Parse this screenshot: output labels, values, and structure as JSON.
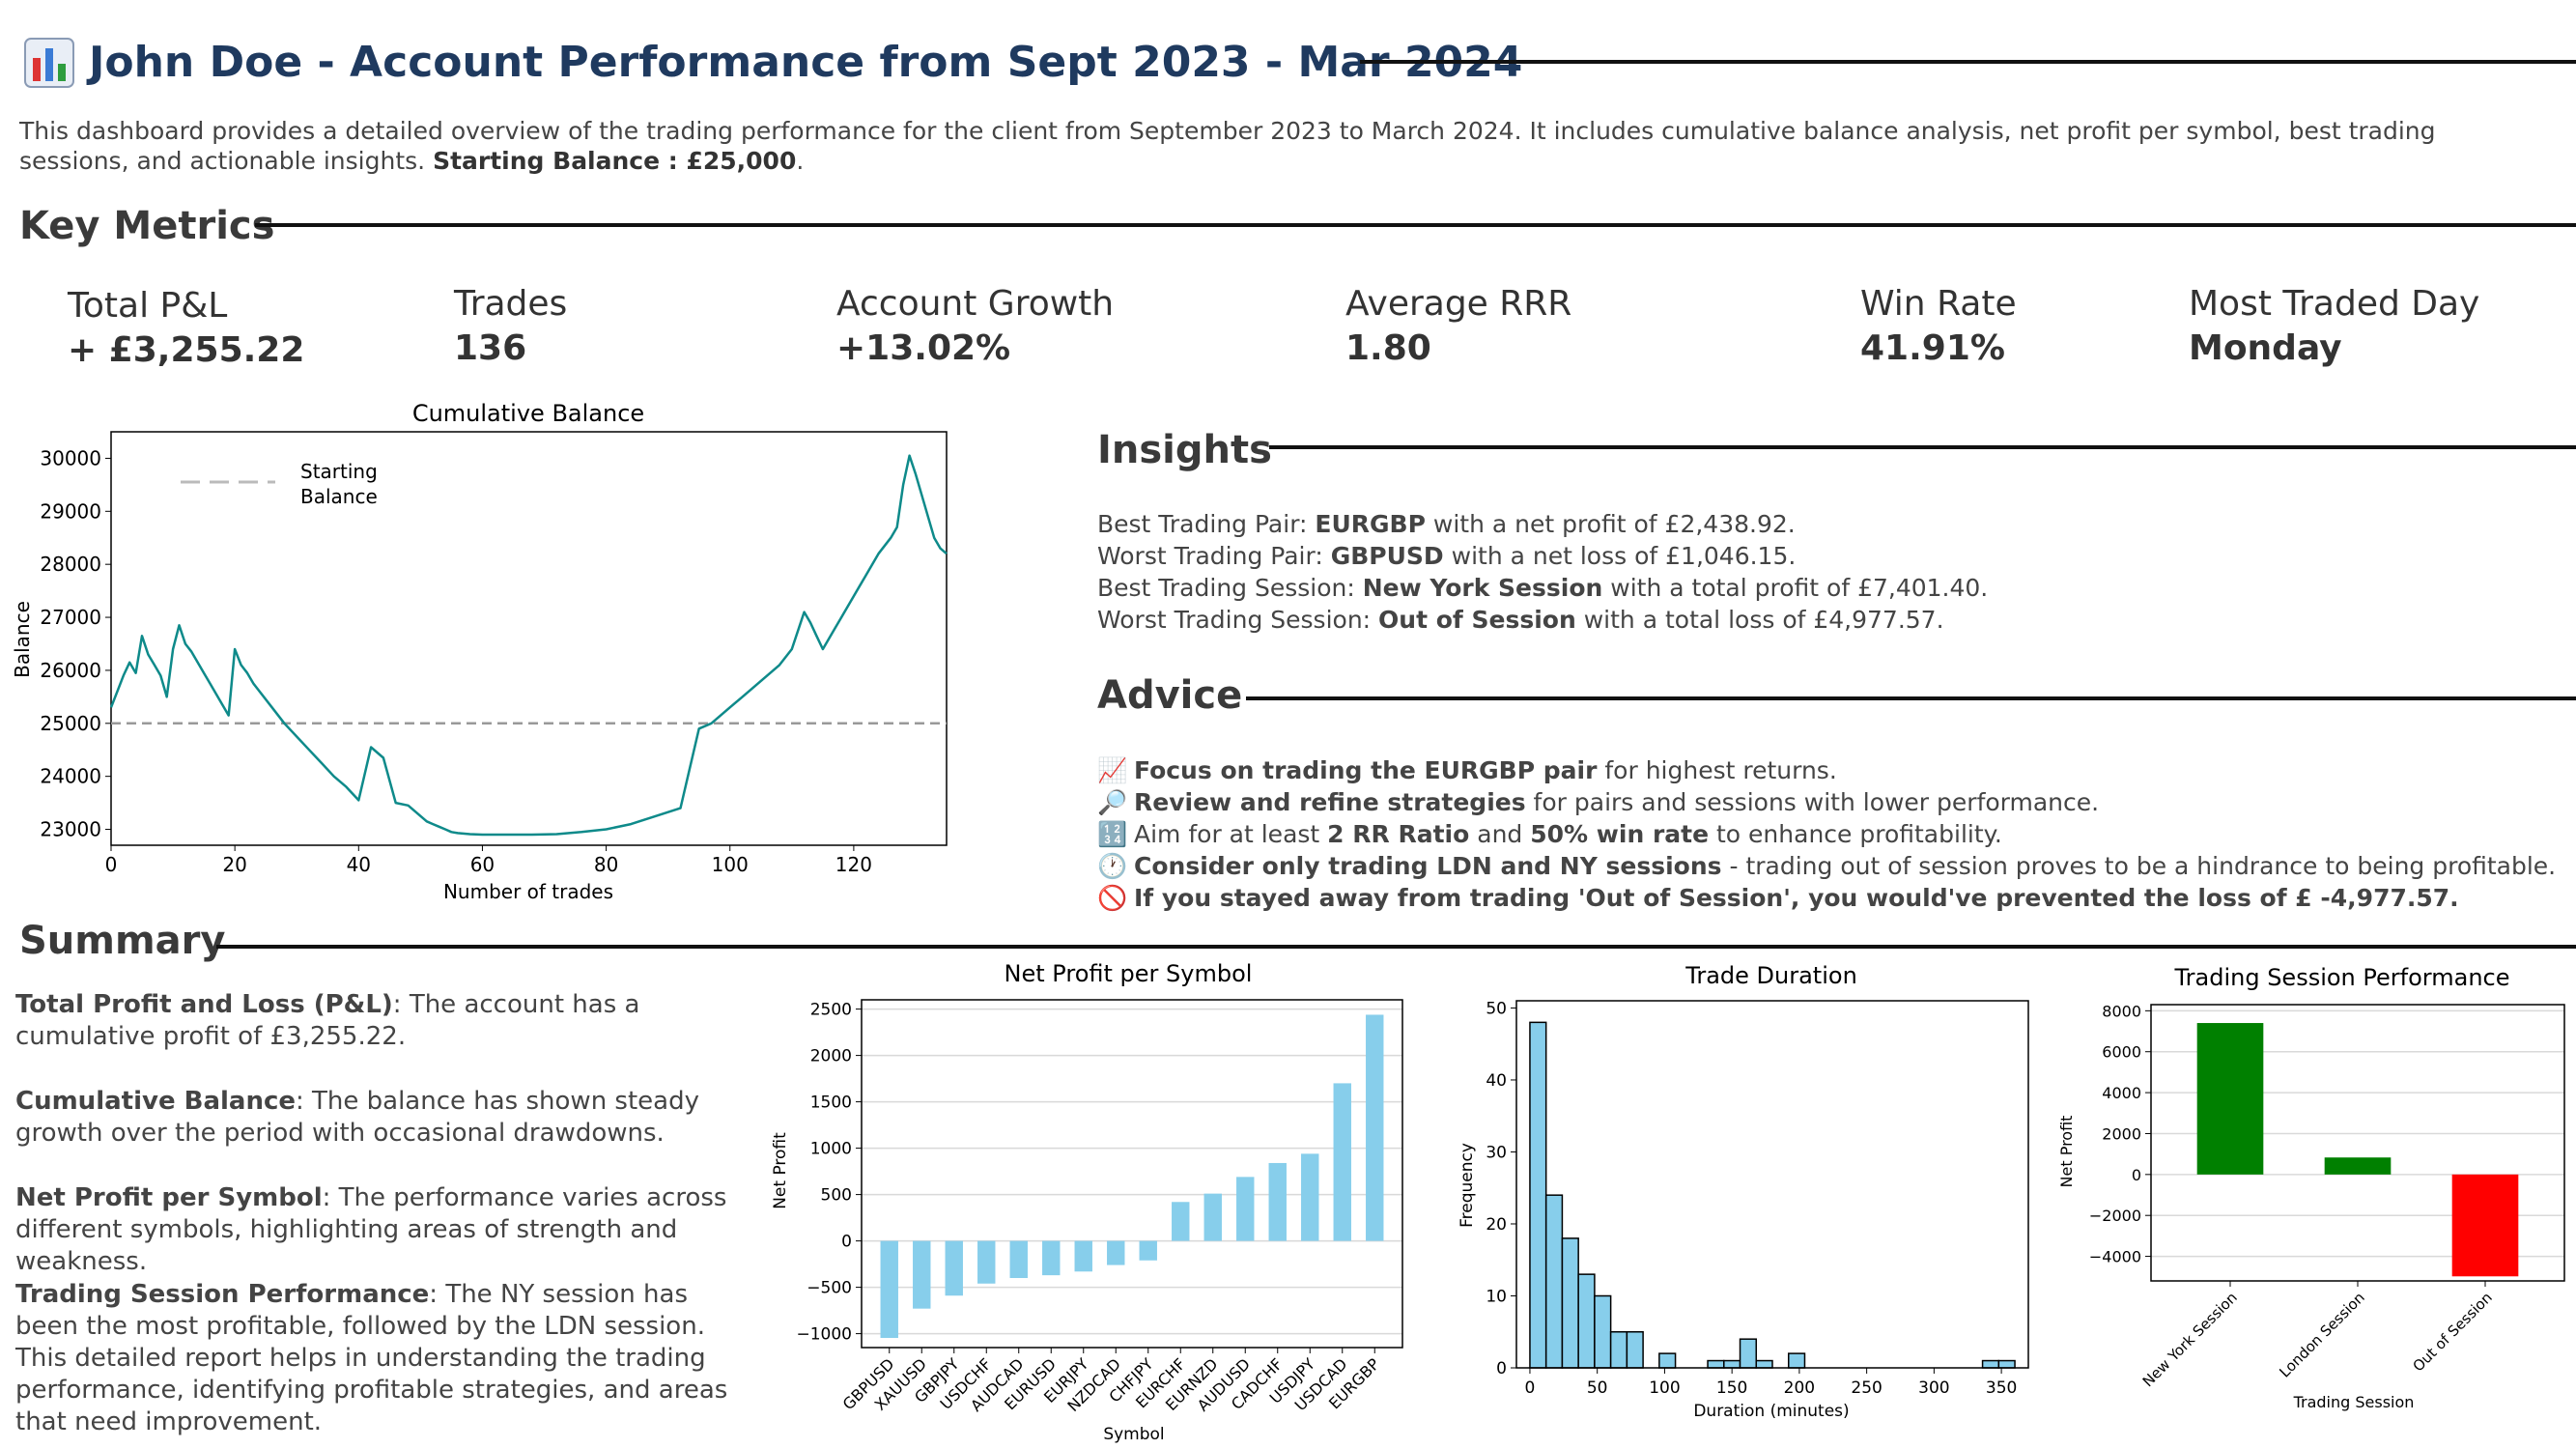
{
  "header": {
    "icon": "bar-chart-icon",
    "title": "John Doe - Account Performance from Sept 2023 - Mar 2024",
    "intro": "This dashboard provides a detailed overview of the trading performance for the client from September 2023 to March 2024. It includes cumulative balance analysis, net profit per symbol, best trading sessions, and actionable insights.",
    "starting_balance_label": "Starting Balance : £25,000",
    "title_color": "#1f3a5f"
  },
  "key_metrics": {
    "heading": "Key Metrics",
    "items": [
      {
        "label": "Total P&L",
        "value": "+ £3,255.22"
      },
      {
        "label": "Trades",
        "value": "136"
      },
      {
        "label": "Account Growth",
        "value": "+13.02%"
      },
      {
        "label": "Average RRR",
        "value": "1.80"
      },
      {
        "label": "Win Rate",
        "value": "41.91%"
      },
      {
        "label": "Most Traded Day",
        "value": "Monday"
      }
    ]
  },
  "insights": {
    "heading": "Insights",
    "lines": [
      {
        "prefix": "Best Trading Pair: ",
        "bold": "EURGBP",
        "suffix": " with a net profit of £2,438.92."
      },
      {
        "prefix": "Worst Trading Pair: ",
        "bold": "GBPUSD",
        "suffix": " with a net loss of £1,046.15."
      },
      {
        "prefix": "Best Trading Session: ",
        "bold": "New York Session",
        "suffix": " with a total profit of £7,401.40."
      },
      {
        "prefix": "Worst Trading Session: ",
        "bold": "Out of Session",
        "suffix": " with a total loss of £4,977.57."
      }
    ]
  },
  "advice": {
    "heading": "Advice",
    "lines": [
      {
        "icon": "chart-increasing-icon",
        "glyph": "📈",
        "prefix": "",
        "bold": "Focus on trading the EURGBP pair",
        "suffix": " for highest returns."
      },
      {
        "icon": "magnifier-icon",
        "glyph": "🔎",
        "prefix": "",
        "bold": "Review and refine strategies",
        "suffix": " for pairs and sessions with lower performance."
      },
      {
        "icon": "numbers-icon",
        "glyph": "🔢",
        "prefix": "Aim for at least ",
        "bold": "2 RR Ratio",
        "suffix": " and ",
        "bold2": "50% win rate",
        "suffix2": " to enhance profitability."
      },
      {
        "icon": "clock-icon",
        "glyph": "🕐",
        "prefix": "",
        "bold": "Consider only trading LDN and NY sessions",
        "suffix": " - trading out of session proves to be a hindrance to being profitable."
      },
      {
        "icon": "prohibited-icon",
        "glyph": "🚫",
        "prefix": "",
        "bold": "If you stayed away from trading 'Out of Session', you would've prevented the loss of £ -4,977.57.",
        "suffix": ""
      }
    ]
  },
  "summary": {
    "heading": "Summary",
    "paragraphs": [
      {
        "bold": "Total Profit and Loss (P&L)",
        "text": ": The account has a cumulative profit of £3,255.22."
      },
      {
        "bold": "Cumulative Balance",
        "text": ": The balance has shown steady growth over the period with occasional drawdowns."
      },
      {
        "bold": "Net Profit per Symbol",
        "text": ": The performance varies across different symbols, highlighting areas of strength and weakness."
      },
      {
        "bold": "Trading Session Performance",
        "text": ": The NY session has been the most profitable, followed by the LDN session."
      }
    ],
    "closing": "This detailed report helps in understanding the trading performance, identifying profitable strategies, and areas that need improvement."
  },
  "chart_data": [
    {
      "type": "line",
      "title": "Cumulative Balance",
      "xlabel": "Number of trades",
      "ylabel": "Balance",
      "xlim": [
        0,
        135
      ],
      "ylim": [
        22700,
        30500
      ],
      "xticks": [
        0,
        20,
        40,
        60,
        80,
        100,
        120
      ],
      "yticks": [
        23000,
        24000,
        25000,
        26000,
        27000,
        28000,
        29000,
        30000
      ],
      "legend": "top-left",
      "grid": false,
      "line_color": "#0e8a8a",
      "reference_line": {
        "name": "Starting Balance",
        "value": 25000,
        "color": "#999999"
      },
      "x": [
        0,
        1,
        2,
        3,
        4,
        5,
        6,
        7,
        8,
        9,
        10,
        11,
        12,
        13,
        14,
        15,
        16,
        17,
        18,
        19,
        20,
        21,
        22,
        23,
        24,
        26,
        28,
        30,
        32,
        34,
        36,
        38,
        40,
        42,
        44,
        46,
        48,
        49,
        50,
        51,
        52,
        53,
        54,
        55,
        56,
        58,
        60,
        64,
        68,
        72,
        76,
        80,
        84,
        88,
        92,
        95,
        97,
        98,
        99,
        100,
        102,
        104,
        106,
        108,
        110,
        112,
        113,
        114,
        115,
        116,
        117,
        118,
        120,
        122,
        124,
        126,
        127,
        128,
        129,
        130,
        131,
        132,
        133,
        134,
        135
      ],
      "y": [
        25300,
        25600,
        25900,
        26150,
        25950,
        26650,
        26300,
        26100,
        25900,
        25500,
        26400,
        26850,
        26500,
        26350,
        26150,
        25950,
        25750,
        25550,
        25350,
        25150,
        26400,
        26100,
        25950,
        25750,
        25600,
        25300,
        25000,
        24750,
        24500,
        24250,
        24000,
        23800,
        23550,
        24550,
        24350,
        23500,
        23450,
        23350,
        23250,
        23150,
        23100,
        23050,
        23000,
        22950,
        22930,
        22910,
        22900,
        22900,
        22900,
        22910,
        22950,
        23000,
        23100,
        23250,
        23400,
        24900,
        25000,
        25100,
        25200,
        25300,
        25500,
        25700,
        25900,
        26100,
        26400,
        27100,
        26900,
        26650,
        26400,
        26600,
        26800,
        27000,
        27400,
        27800,
        28200,
        28500,
        28700,
        29500,
        30050,
        29700,
        29300,
        28900,
        28500,
        28300,
        28200
      ]
    },
    {
      "type": "bar",
      "title": "Net Profit per Symbol",
      "xlabel": "Symbol",
      "ylabel": "Net Profit",
      "ylim": [
        -1150,
        2600
      ],
      "yticks": [
        -1000,
        -500,
        0,
        500,
        1000,
        1500,
        2000,
        2500
      ],
      "grid": true,
      "bar_color": "#87ceeb",
      "categories": [
        "GBPUSD",
        "XAUUSD",
        "GBPJPY",
        "USDCHF",
        "AUDCAD",
        "EURUSD",
        "EURJPY",
        "NZDCAD",
        "CHFJPY",
        "EURCHF",
        "EURNZD",
        "AUDUSD",
        "CADCHF",
        "USDJPY",
        "USDCAD",
        "EURGBP"
      ],
      "values": [
        -1046.15,
        -730,
        -590,
        -460,
        -400,
        -370,
        -330,
        -260,
        -210,
        420,
        510,
        690,
        840,
        940,
        1700,
        2438.92
      ]
    },
    {
      "type": "bar",
      "title": "Trade Duration",
      "xlabel": "Duration (minutes)",
      "ylabel": "Frequency",
      "xlim": [
        -10,
        370
      ],
      "ylim": [
        0,
        51
      ],
      "xticks": [
        0,
        50,
        100,
        150,
        200,
        250,
        300,
        350
      ],
      "yticks": [
        0,
        10,
        20,
        30,
        40,
        50
      ],
      "grid": false,
      "bar_color": "#87ceeb",
      "bin_width": 12,
      "bin_starts": [
        0,
        12,
        24,
        36,
        48,
        60,
        72,
        84,
        96,
        108,
        120,
        132,
        144,
        156,
        168,
        180,
        192,
        204,
        216,
        228,
        240,
        252,
        264,
        276,
        288,
        300,
        312,
        324,
        336,
        348
      ],
      "values": [
        48,
        24,
        18,
        13,
        10,
        5,
        5,
        0,
        2,
        0,
        0,
        1,
        1,
        4,
        1,
        0,
        2,
        0,
        0,
        0,
        0,
        0,
        0,
        0,
        0,
        0,
        0,
        0,
        1,
        1
      ]
    },
    {
      "type": "bar",
      "title": "Trading Session Performance",
      "xlabel": "Trading Session",
      "ylabel": "Net Profit",
      "ylim": [
        -5200,
        8300
      ],
      "yticks": [
        -4000,
        -2000,
        0,
        2000,
        4000,
        6000,
        8000
      ],
      "grid": true,
      "categories": [
        "New York Session",
        "London Session",
        "Out of Session"
      ],
      "values": [
        7401.4,
        831.39,
        -4977.57
      ],
      "colors": [
        "#008000",
        "#008000",
        "#ff0000"
      ]
    }
  ]
}
